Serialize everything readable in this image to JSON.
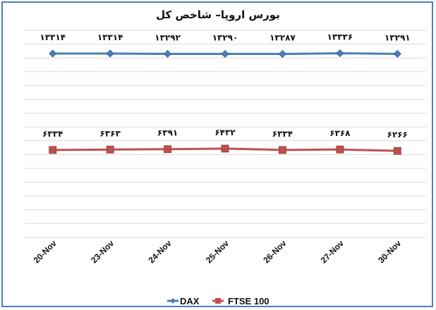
{
  "chart_data": {
    "type": "line",
    "title": "بورس اروپا– شاخص کل",
    "categories": [
      "20-Nov",
      "23-Nov",
      "24-Nov",
      "25-Nov",
      "26-Nov",
      "27-Nov",
      "30-Nov"
    ],
    "series": [
      {
        "name": "DAX",
        "values": [
          13314,
          13314,
          13292,
          13290,
          13287,
          13336,
          13291
        ],
        "labels": [
          "۱۳۳۱۴",
          "۱۳۳۱۴",
          "۱۳۲۹۲",
          "۱۳۲۹۰",
          "۱۳۲۸۷",
          "۱۳۳۳۶",
          "۱۳۲۹۱"
        ],
        "color": "#4a7ebb",
        "marker": "diamond"
      },
      {
        "name": "FTSE 100",
        "values": [
          6334,
          6363,
          6391,
          6432,
          6334,
          6368,
          6266
        ],
        "labels": [
          "۶۳۳۴",
          "۶۳۶۳",
          "۶۳۹۱",
          "۶۴۳۲",
          "۶۳۳۴",
          "۶۳۶۸",
          "۶۲۶۶"
        ],
        "color": "#c0504d",
        "marker": "square"
      }
    ],
    "ylim": [
      0,
      15000
    ],
    "y_axis_labels_shown": false,
    "grid": true,
    "legend": "bottom"
  }
}
